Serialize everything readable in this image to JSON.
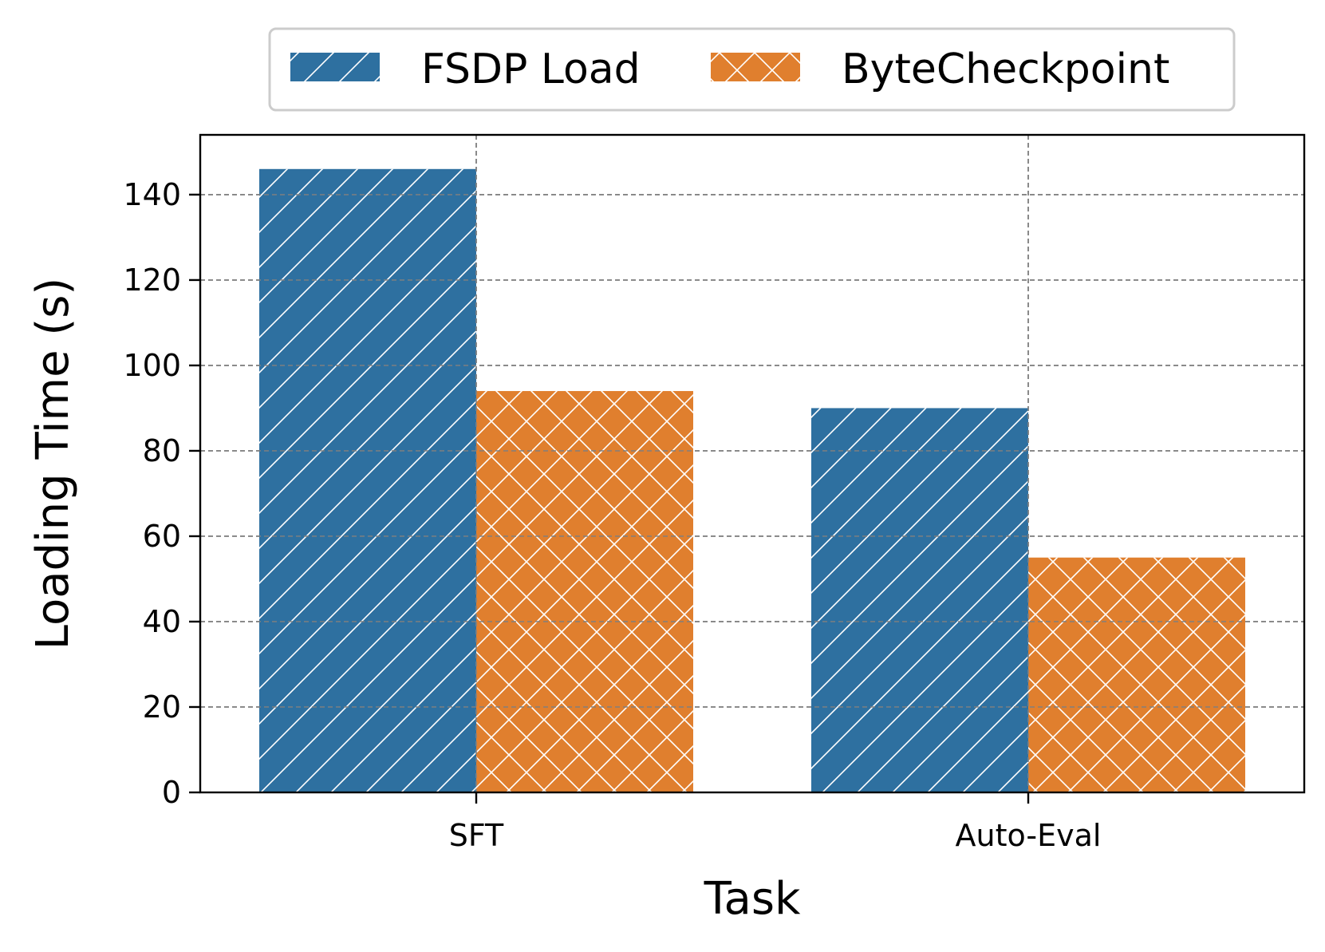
{
  "chart_data": {
    "type": "bar",
    "categories": [
      "SFT",
      "Auto-Eval"
    ],
    "series": [
      {
        "name": "FSDP Load",
        "values": [
          146,
          90
        ],
        "color": "#2e70a0",
        "hatch": "diagonal"
      },
      {
        "name": "ByteCheckpoint",
        "values": [
          94,
          55
        ],
        "color": "#e07f2e",
        "hatch": "cross"
      }
    ],
    "xlabel": "Task",
    "ylabel": "Loading Time (s)",
    "ylim": [
      0,
      154
    ],
    "yticks": [
      0,
      20,
      40,
      60,
      80,
      100,
      120,
      140
    ],
    "grid": true,
    "legend_position": "top-center"
  }
}
